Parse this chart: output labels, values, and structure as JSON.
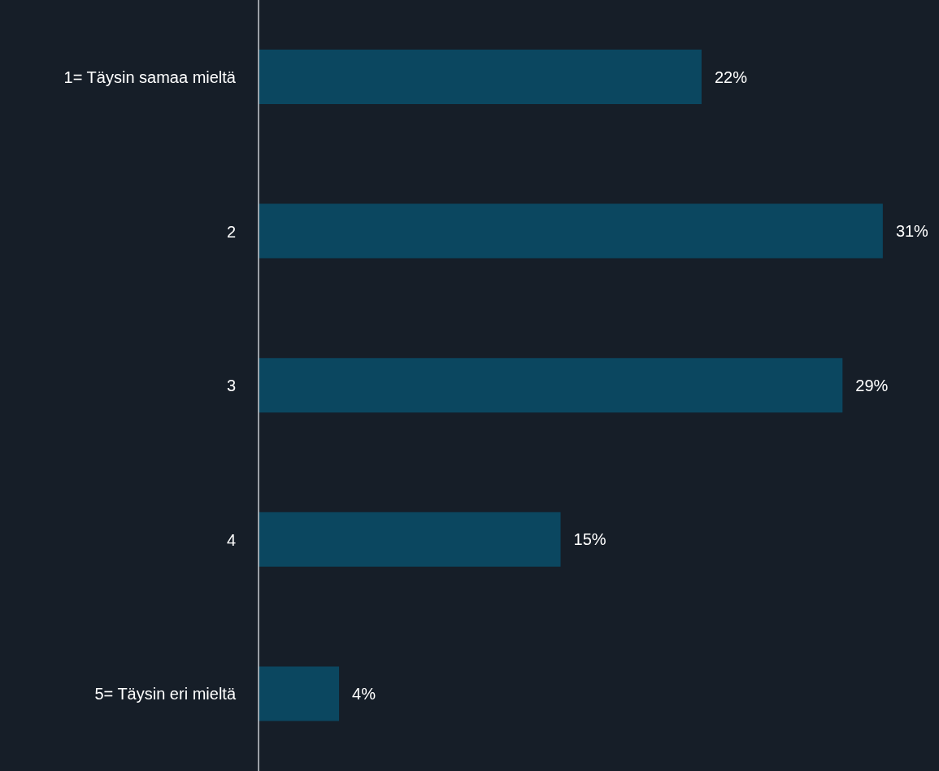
{
  "chart_data": {
    "type": "bar",
    "orientation": "horizontal",
    "categories": [
      "1= Täysin samaa mieltä",
      "2",
      "3",
      "4",
      "5= Täysin eri mieltä"
    ],
    "values": [
      22,
      31,
      29,
      15,
      4
    ],
    "value_labels": [
      "22%",
      "31%",
      "29%",
      "15%",
      "4%"
    ],
    "color": "#0b4760"
  }
}
